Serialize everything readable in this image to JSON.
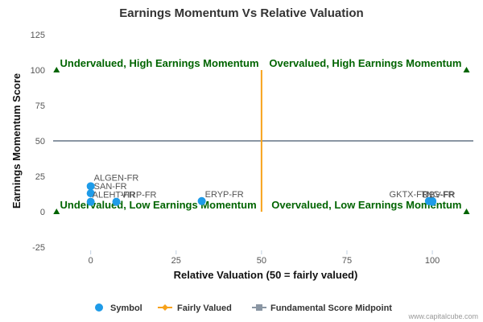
{
  "chart_data": {
    "type": "scatter",
    "title": "Earnings Momentum Vs Relative Valuation",
    "xlabel": "Relative Valuation (50 = fairly valued)",
    "ylabel": "Earnings Momentum Score",
    "xlim": [
      -11,
      112
    ],
    "ylim": [
      -25,
      125
    ],
    "x_ticks": [
      0,
      25,
      50,
      75,
      100
    ],
    "y_ticks": [
      -25,
      0,
      25,
      50,
      75,
      100,
      125
    ],
    "grid": false,
    "legend_position": "bottom",
    "quadrant_labels": [
      {
        "text": "Undervalued, High Earnings Momentum",
        "x": 0,
        "y": 100
      },
      {
        "text": "Overvalued, High Earnings Momentum",
        "x": 100,
        "y": 100
      },
      {
        "text": "Undervalued, Low Earnings Momentum",
        "x": 0,
        "y": 0
      },
      {
        "text": "Overvalued, Low Earnings Momentum",
        "x": 100,
        "y": 0
      }
    ],
    "corner_markers": [
      {
        "x": -10,
        "y": 100
      },
      {
        "x": 110,
        "y": 100
      },
      {
        "x": -10,
        "y": 0
      },
      {
        "x": 110,
        "y": 0
      }
    ],
    "series": [
      {
        "name": "Symbol",
        "color": "#1e9be8",
        "points": [
          {
            "label": "ALGEN-FR",
            "x": 0,
            "y": 18
          },
          {
            "label": "SAN-FR",
            "x": 0,
            "y": 13
          },
          {
            "label": "ALEHT-FR",
            "x": 0,
            "y": 7
          },
          {
            "label": "VIRP-FR",
            "x": 7.5,
            "y": 7
          },
          {
            "label": "ERYP-FR",
            "x": 32.5,
            "y": 7.5
          },
          {
            "label": "GKTX-FR",
            "x": 99,
            "y": 7.5
          },
          {
            "label": "TNG-FR",
            "x": 100,
            "y": 7.5
          },
          {
            "label": "DBV-FR",
            "x": 100,
            "y": 7
          }
        ]
      },
      {
        "name": "Fairly Valued",
        "color": "#f7a21b",
        "x": 50,
        "y_range": [
          0,
          100
        ]
      },
      {
        "name": "Fundamental Score Midpoint",
        "color": "#8a96a3",
        "y": 50,
        "x_range": [
          -11,
          112
        ]
      }
    ],
    "credit": "www.capitalcube.com",
    "colors": {
      "quadrant_text": "#006400",
      "marker": "#006400"
    }
  }
}
